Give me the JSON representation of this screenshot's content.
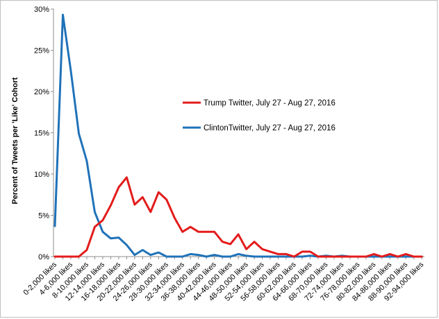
{
  "chart_data": {
    "type": "line",
    "title": "",
    "xlabel": "",
    "ylabel": "Percent of Tweets per 'Like' Cohort",
    "ylim": [
      0,
      30
    ],
    "yticks": [
      "0%",
      "5%",
      "10%",
      "15%",
      "20%",
      "25%",
      "30%"
    ],
    "grid": false,
    "legend_position": "center",
    "categories": [
      "0-2,000 likes",
      "2-4,000 likes",
      "4-6,000 likes",
      "6-8,000 likes",
      "8-10,000 likes",
      "10-12,000 likes",
      "12-14,000 likes",
      "14-16,000 likes",
      "16-18,000 likes",
      "18-20,000 likes",
      "20-22,000 likes",
      "22-24,000 likes",
      "24-26,000 likes",
      "26-28,000 likes",
      "28-30,000 likes",
      "30-32,000 likes",
      "32-34,000 likes",
      "34-36,000 likes",
      "36-38,000 likes",
      "38-40,000 likes",
      "40-42,000 likes",
      "42-44,000 likes",
      "44-46,000 likes",
      "46-48,000 likes",
      "48-50,000 likes",
      "50-52,000 likes",
      "52-54,000 likes",
      "54-56,000 likes",
      "56-58,000 likes",
      "58-60,000 likes",
      "60-62,000 likes",
      "62-64,000 likes",
      "64-66,000 likes",
      "66-68,000 likes",
      "68-70,000 likes",
      "70-72,000 likes",
      "72-74,000 likes",
      "74-76,000 likes",
      "76-78,000 likes",
      "78-80,000 likes",
      "80-82,000 likes",
      "82-84,000 likes",
      "84-86,000 likes",
      "86-88,000 likes",
      "88-90,000 likes",
      "90-92,000 likes",
      "92-94,000 likes"
    ],
    "visible_category_indices": [
      0,
      2,
      4,
      6,
      8,
      10,
      12,
      14,
      16,
      18,
      20,
      22,
      24,
      26,
      28,
      30,
      32,
      34,
      36,
      38,
      40,
      42,
      44,
      46
    ],
    "series": [
      {
        "name": "Trump Twitter, July 27 - Aug 27, 2016",
        "color": "#e31b1b",
        "values": [
          0,
          0,
          0,
          0,
          0.8,
          3.6,
          4.4,
          6.2,
          8.4,
          9.6,
          6.3,
          7.2,
          5.4,
          7.8,
          6.9,
          4.7,
          3.0,
          3.6,
          3.0,
          3.0,
          3.0,
          1.8,
          1.5,
          2.7,
          0.9,
          1.8,
          0.9,
          0.6,
          0.3,
          0.3,
          0,
          0.6,
          0.6,
          0,
          0,
          0,
          0,
          0,
          0,
          0,
          0.3,
          0,
          0.3,
          0,
          0.3,
          0,
          0
        ]
      },
      {
        "name": "ClintonTwitter, July 27 - Aug 27, 2016",
        "color": "#1f72b8",
        "values": [
          3.7,
          29.3,
          22.5,
          14.9,
          11.6,
          5.4,
          3.0,
          2.2,
          2.3,
          1.4,
          0.2,
          0.8,
          0.2,
          0.5,
          0,
          0,
          0,
          0.3,
          0.2,
          0,
          0.2,
          0,
          0,
          0.3,
          0.1,
          0,
          0,
          0,
          0,
          0,
          0,
          0,
          0.1,
          0,
          0.1,
          0,
          0.1,
          0,
          0,
          0,
          0,
          0,
          0,
          0,
          0,
          0,
          0
        ]
      }
    ]
  }
}
